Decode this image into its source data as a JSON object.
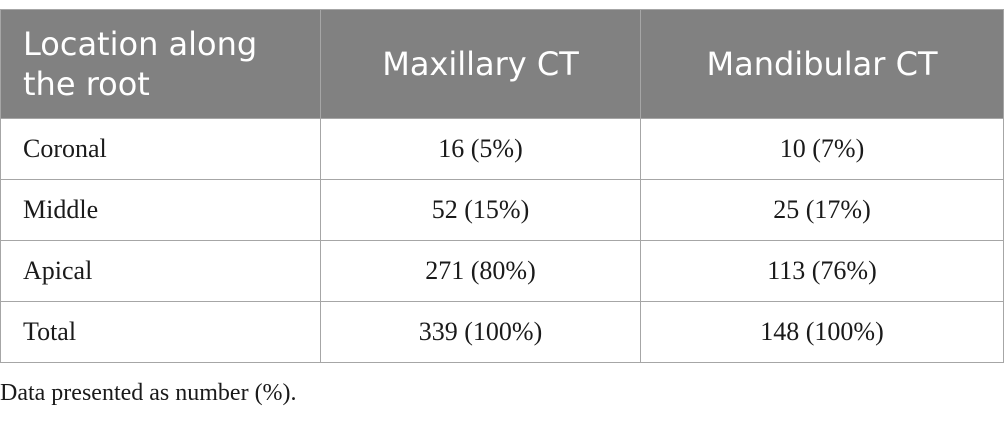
{
  "table": {
    "headers": [
      "Location along the root",
      "Maxillary CT",
      "Mandibular CT"
    ],
    "rows": [
      [
        "Coronal",
        "16 (5%)",
        "10 (7%)"
      ],
      [
        "Middle",
        "52 (15%)",
        "25 (17%)"
      ],
      [
        "Apical",
        "271 (80%)",
        "113 (76%)"
      ],
      [
        "Total",
        "339 (100%)",
        "148 (100%)"
      ]
    ]
  },
  "footnote": "Data presented as number (%).",
  "colors": {
    "header_bg": "#818181",
    "header_text": "#ffffff",
    "border": "#a6a6a6",
    "body_text": "#1a1a1a"
  }
}
